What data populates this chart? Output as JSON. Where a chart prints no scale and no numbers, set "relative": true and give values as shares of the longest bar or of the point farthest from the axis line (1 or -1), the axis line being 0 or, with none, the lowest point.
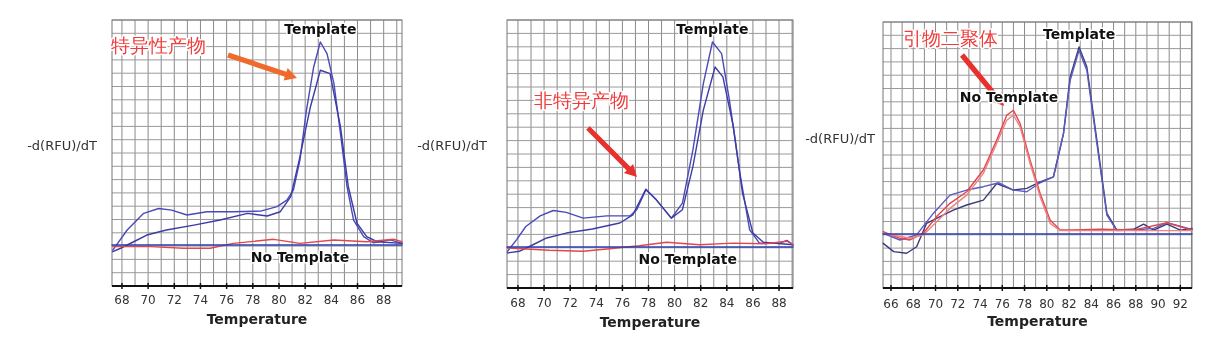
{
  "chart_data": [
    {
      "type": "line",
      "relative": true,
      "ylabel": "-d(RFU)/dT",
      "xlabel": "Temperature",
      "xlim": [
        67.24,
        89.4
      ],
      "xticks": [
        68,
        70,
        72,
        74,
        76,
        78,
        80,
        82,
        84,
        86,
        88
      ],
      "grid": true,
      "marker": "none",
      "line_style": "solid",
      "series": [
        {
          "color": "#4a4ab8",
          "x": [
            67.3,
            68.4,
            69.66,
            70.8,
            71.8,
            72.97,
            74.5,
            76.5,
            78.6,
            79.85,
            80.6,
            81.1,
            81.6,
            82.1,
            82.65,
            83.16,
            83.67,
            84.2,
            84.7,
            85.2,
            85.7,
            86.47,
            87.2,
            88.5,
            89.4
          ],
          "values": [
            -0.025,
            0.074,
            0.156,
            0.18,
            0.172,
            0.148,
            0.164,
            0.164,
            0.167,
            0.189,
            0.221,
            0.27,
            0.418,
            0.664,
            0.877,
            1.0,
            0.943,
            0.795,
            0.549,
            0.287,
            0.123,
            0.041,
            0.011,
            0.025,
            0.008
          ]
        },
        {
          "color": "#3c3ca6",
          "x": [
            67.3,
            67.9,
            68.9,
            69.9,
            71.4,
            73.5,
            75.5,
            77.6,
            79.1,
            80.1,
            80.9,
            81.6,
            82.4,
            83.16,
            83.9,
            84.7,
            85.3,
            85.96,
            86.7,
            87.5,
            89.4
          ],
          "values": [
            -0.033,
            -0.016,
            0.016,
            0.049,
            0.074,
            0.098,
            0.123,
            0.156,
            0.143,
            0.164,
            0.238,
            0.434,
            0.68,
            0.861,
            0.844,
            0.582,
            0.287,
            0.107,
            0.041,
            0.016,
            0.008
          ]
        },
        {
          "color": "#e0474c",
          "x": [
            67.3,
            70.2,
            72.7,
            74.75,
            76.5,
            79.6,
            81.6,
            84.2,
            86.7,
            88.8,
            89.4
          ],
          "values": [
            -0.008,
            -0.008,
            -0.016,
            -0.016,
            0.008,
            0.028,
            0.008,
            0.025,
            0.016,
            0.028,
            0.016
          ]
        },
        {
          "color": "#2a3cb0",
          "x": [
            67.24,
            89.4
          ],
          "values": [
            0,
            0
          ]
        }
      ],
      "annotations": [
        "特异性产物",
        {
          "text": "Template",
          "x": 83.16,
          "y": 1.0
        },
        {
          "text": "No Template",
          "x": 81.6,
          "y": 0
        }
      ]
    },
    {
      "type": "line",
      "relative": true,
      "ylabel": "-d(RFU)/dT",
      "xlabel": "Temperature",
      "xlim": [
        67.16,
        89.07
      ],
      "xticks": [
        68,
        70,
        72,
        74,
        76,
        78,
        80,
        82,
        84,
        86,
        88
      ],
      "grid": true,
      "marker": "none",
      "line_style": "solid",
      "series": [
        {
          "color": "#4a4ab8",
          "x": [
            67.2,
            67.9,
            68.6,
            69.7,
            70.7,
            71.7,
            73.0,
            74.8,
            76.6,
            77.1,
            77.8,
            78.6,
            79.75,
            80.6,
            81.4,
            82.2,
            82.9,
            83.6,
            84.2,
            85.0,
            85.75,
            86.5,
            88.05,
            88.6,
            89.07
          ],
          "values": [
            -0.021,
            0.036,
            0.1,
            0.152,
            0.178,
            0.169,
            0.141,
            0.152,
            0.152,
            0.182,
            0.279,
            0.23,
            0.141,
            0.214,
            0.473,
            0.797,
            1.0,
            0.943,
            0.716,
            0.36,
            0.084,
            0.019,
            0.019,
            0.032,
            0.011
          ]
        },
        {
          "color": "#3c3ca6",
          "x": [
            67.2,
            68.1,
            69.15,
            70.2,
            71.7,
            73.7,
            75.8,
            76.8,
            77.8,
            78.6,
            79.75,
            80.6,
            81.4,
            82.2,
            83.1,
            83.7,
            84.5,
            85.2,
            86.0,
            86.8,
            89.07
          ],
          "values": [
            -0.029,
            -0.021,
            0.011,
            0.044,
            0.068,
            0.088,
            0.117,
            0.157,
            0.282,
            0.23,
            0.141,
            0.182,
            0.392,
            0.668,
            0.878,
            0.83,
            0.587,
            0.263,
            0.068,
            0.023,
            0.011
          ]
        },
        {
          "color": "#e0474c",
          "x": [
            67.2,
            70.4,
            73.0,
            74.8,
            77.3,
            79.4,
            81.9,
            84.5,
            87.0,
            88.6,
            89.07
          ],
          "values": [
            -0.005,
            -0.016,
            -0.021,
            -0.01,
            0.006,
            0.023,
            0.011,
            0.019,
            0.016,
            0.028,
            0.011
          ]
        },
        {
          "color": "#2a3cb0",
          "x": [
            67.16,
            89.07
          ],
          "values": [
            0,
            0
          ]
        }
      ],
      "annotations": [
        "非特异产物",
        {
          "text": "Template",
          "x": 82.9,
          "y": 1.0
        },
        {
          "text": "No Template",
          "x": 81.0,
          "y": 0
        }
      ]
    },
    {
      "type": "line",
      "relative": true,
      "ylabel": "-d(RFU)/dT",
      "xlabel": "Temperature",
      "xlim": [
        65.28,
        93.05
      ],
      "xticks": [
        66,
        68,
        70,
        72,
        74,
        76,
        78,
        80,
        82,
        84,
        86,
        88,
        90,
        92
      ],
      "grid": true,
      "marker": "none",
      "line_style": "solid",
      "series": [
        {
          "color": "#3a3a7a",
          "x": [
            65.3,
            66.24,
            67.4,
            68.3,
            69.2,
            70.4,
            71.6,
            72.8,
            74.3,
            75.5,
            77.0,
            78.2,
            79.4,
            80.6,
            81.5,
            82.1,
            82.9,
            83.6,
            84.5,
            85.4,
            86.3,
            87.8,
            88.7,
            89.6,
            90.8,
            92.0,
            93.05
          ],
          "values": [
            -0.05,
            -0.094,
            -0.103,
            -0.068,
            0.057,
            0.093,
            0.128,
            0.155,
            0.181,
            0.27,
            0.235,
            0.244,
            0.279,
            0.306,
            0.537,
            0.84,
            1.0,
            0.893,
            0.502,
            0.11,
            0.021,
            0.025,
            0.053,
            0.021,
            0.053,
            0.021,
            0.03
          ]
        },
        {
          "color": "#5a5ac0",
          "x": [
            65.3,
            66.8,
            68.3,
            69.8,
            71.3,
            72.8,
            74.3,
            75.7,
            77.0,
            78.2,
            79.4,
            80.6,
            81.5,
            82.1,
            82.9,
            83.6,
            84.5,
            85.4,
            86.3,
            87.8,
            89.6,
            90.8,
            93.05
          ],
          "values": [
            0.004,
            -0.032,
            -0.005,
            0.11,
            0.208,
            0.235,
            0.253,
            0.274,
            0.235,
            0.226,
            0.274,
            0.306,
            0.537,
            0.822,
            0.982,
            0.875,
            0.484,
            0.101,
            0.018,
            0.021,
            0.03,
            0.06,
            0.025
          ]
        },
        {
          "color": "#e0474c",
          "x": [
            65.3,
            66.8,
            67.7,
            68.9,
            70.1,
            71.3,
            72.8,
            74.3,
            75.5,
            76.4,
            77.0,
            77.6,
            78.5,
            79.4,
            80.3,
            81.2,
            82.4,
            84.8,
            87.8,
            90.8,
            93.05
          ],
          "values": [
            0.012,
            -0.023,
            -0.032,
            0.004,
            0.093,
            0.164,
            0.226,
            0.342,
            0.502,
            0.635,
            0.662,
            0.591,
            0.395,
            0.217,
            0.075,
            0.021,
            0.021,
            0.025,
            0.021,
            0.06,
            0.021
          ]
        },
        {
          "color": "#f08080",
          "x": [
            65.3,
            67.7,
            68.9,
            70.1,
            71.3,
            72.8,
            74.3,
            75.5,
            76.4,
            77.0,
            77.6,
            78.5,
            79.4,
            80.3,
            81.2,
            93.05
          ],
          "values": [
            0.004,
            -0.023,
            -0.005,
            0.066,
            0.137,
            0.208,
            0.324,
            0.486,
            0.608,
            0.635,
            0.573,
            0.377,
            0.199,
            0.057,
            0.018,
            0.018
          ]
        },
        {
          "color": "#2a3cb0",
          "x": [
            65.28,
            93.05
          ],
          "values": [
            0,
            0
          ]
        }
      ],
      "annotations": [
        "引物二聚体",
        {
          "text": "Template",
          "x": 82.9,
          "y": 1.0
        },
        {
          "text": "No Template",
          "x": 76.6,
          "y": 0.662
        }
      ]
    }
  ]
}
